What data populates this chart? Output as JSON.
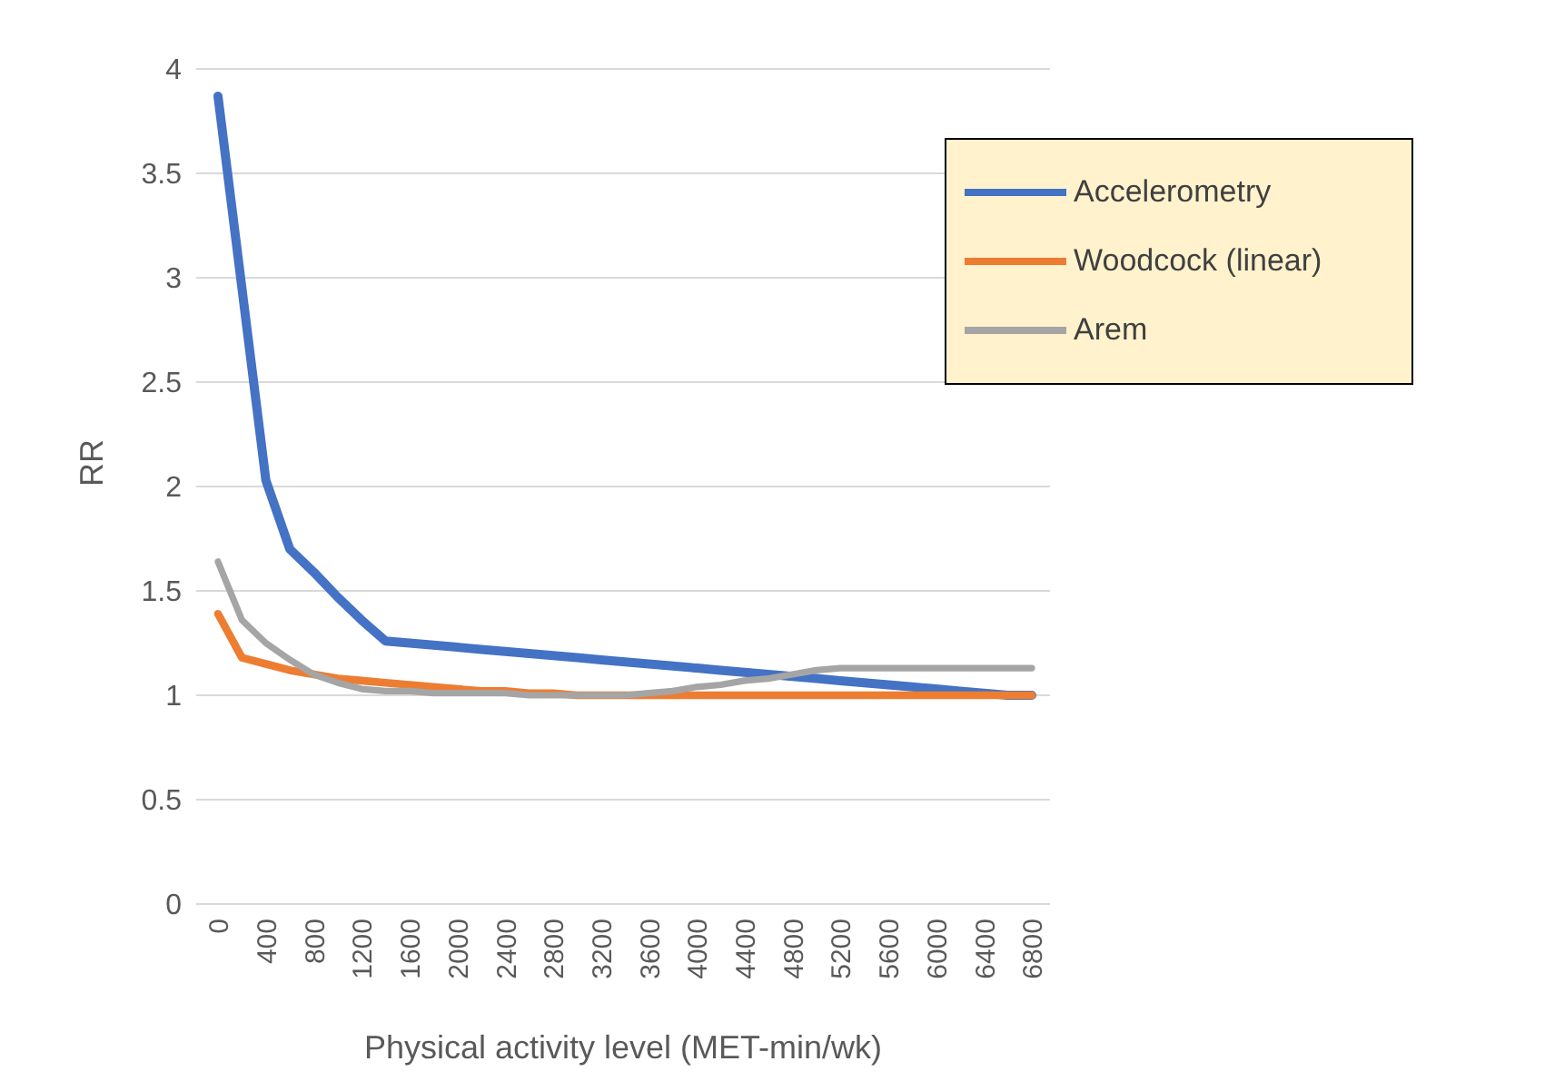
{
  "chart_data": {
    "type": "line",
    "xlabel": "Physical activity level (MET-min/wk)",
    "ylabel": "RR",
    "categories": [
      "0",
      null,
      "400",
      null,
      "800",
      null,
      "1200",
      null,
      "1600",
      null,
      "2000",
      null,
      "2400",
      null,
      "2800",
      null,
      "3200",
      null,
      "3600",
      null,
      "4000",
      null,
      "4400",
      null,
      "4800",
      null,
      "5200",
      null,
      "5600",
      null,
      "6000",
      null,
      "6400",
      null,
      "6800"
    ],
    "series": [
      {
        "name": "Accelerometry",
        "color": "#4472c4",
        "values": [
          3.87,
          2.95,
          2.03,
          1.7,
          1.59,
          1.47,
          1.36,
          1.26,
          1.25,
          1.24,
          1.23,
          1.22,
          1.21,
          1.2,
          1.19,
          1.18,
          1.17,
          1.16,
          1.15,
          1.14,
          1.13,
          1.12,
          1.11,
          1.1,
          1.09,
          1.08,
          1.07,
          1.06,
          1.05,
          1.04,
          1.03,
          1.02,
          1.01,
          1.0,
          1.0
        ]
      },
      {
        "name": "Woodcock (linear)",
        "color": "#ed7d31",
        "values": [
          1.39,
          1.18,
          1.15,
          1.12,
          1.1,
          1.08,
          1.07,
          1.06,
          1.05,
          1.04,
          1.03,
          1.02,
          1.02,
          1.01,
          1.01,
          1.0,
          1.0,
          1.0,
          1.0,
          1.0,
          1.0,
          1.0,
          1.0,
          1.0,
          1.0,
          1.0,
          1.0,
          1.0,
          1.0,
          1.0,
          1.0,
          1.0,
          1.0,
          1.0,
          1.0
        ]
      },
      {
        "name": "Arem",
        "color": "#a5a5a5",
        "values": [
          1.64,
          1.36,
          1.25,
          1.17,
          1.1,
          1.06,
          1.03,
          1.02,
          1.02,
          1.01,
          1.01,
          1.01,
          1.01,
          1.0,
          1.0,
          1.0,
          1.0,
          1.0,
          1.01,
          1.02,
          1.04,
          1.05,
          1.07,
          1.08,
          1.1,
          1.12,
          1.13,
          1.13,
          1.13,
          1.13,
          1.13,
          1.13,
          1.13,
          1.13,
          1.13
        ]
      }
    ],
    "ylim": [
      0,
      4
    ],
    "yticks": [
      0,
      0.5,
      1,
      1.5,
      2,
      2.5,
      3,
      3.5,
      4
    ],
    "grid": "y",
    "legend": "top right",
    "marker": "none",
    "line_style": "solid"
  }
}
